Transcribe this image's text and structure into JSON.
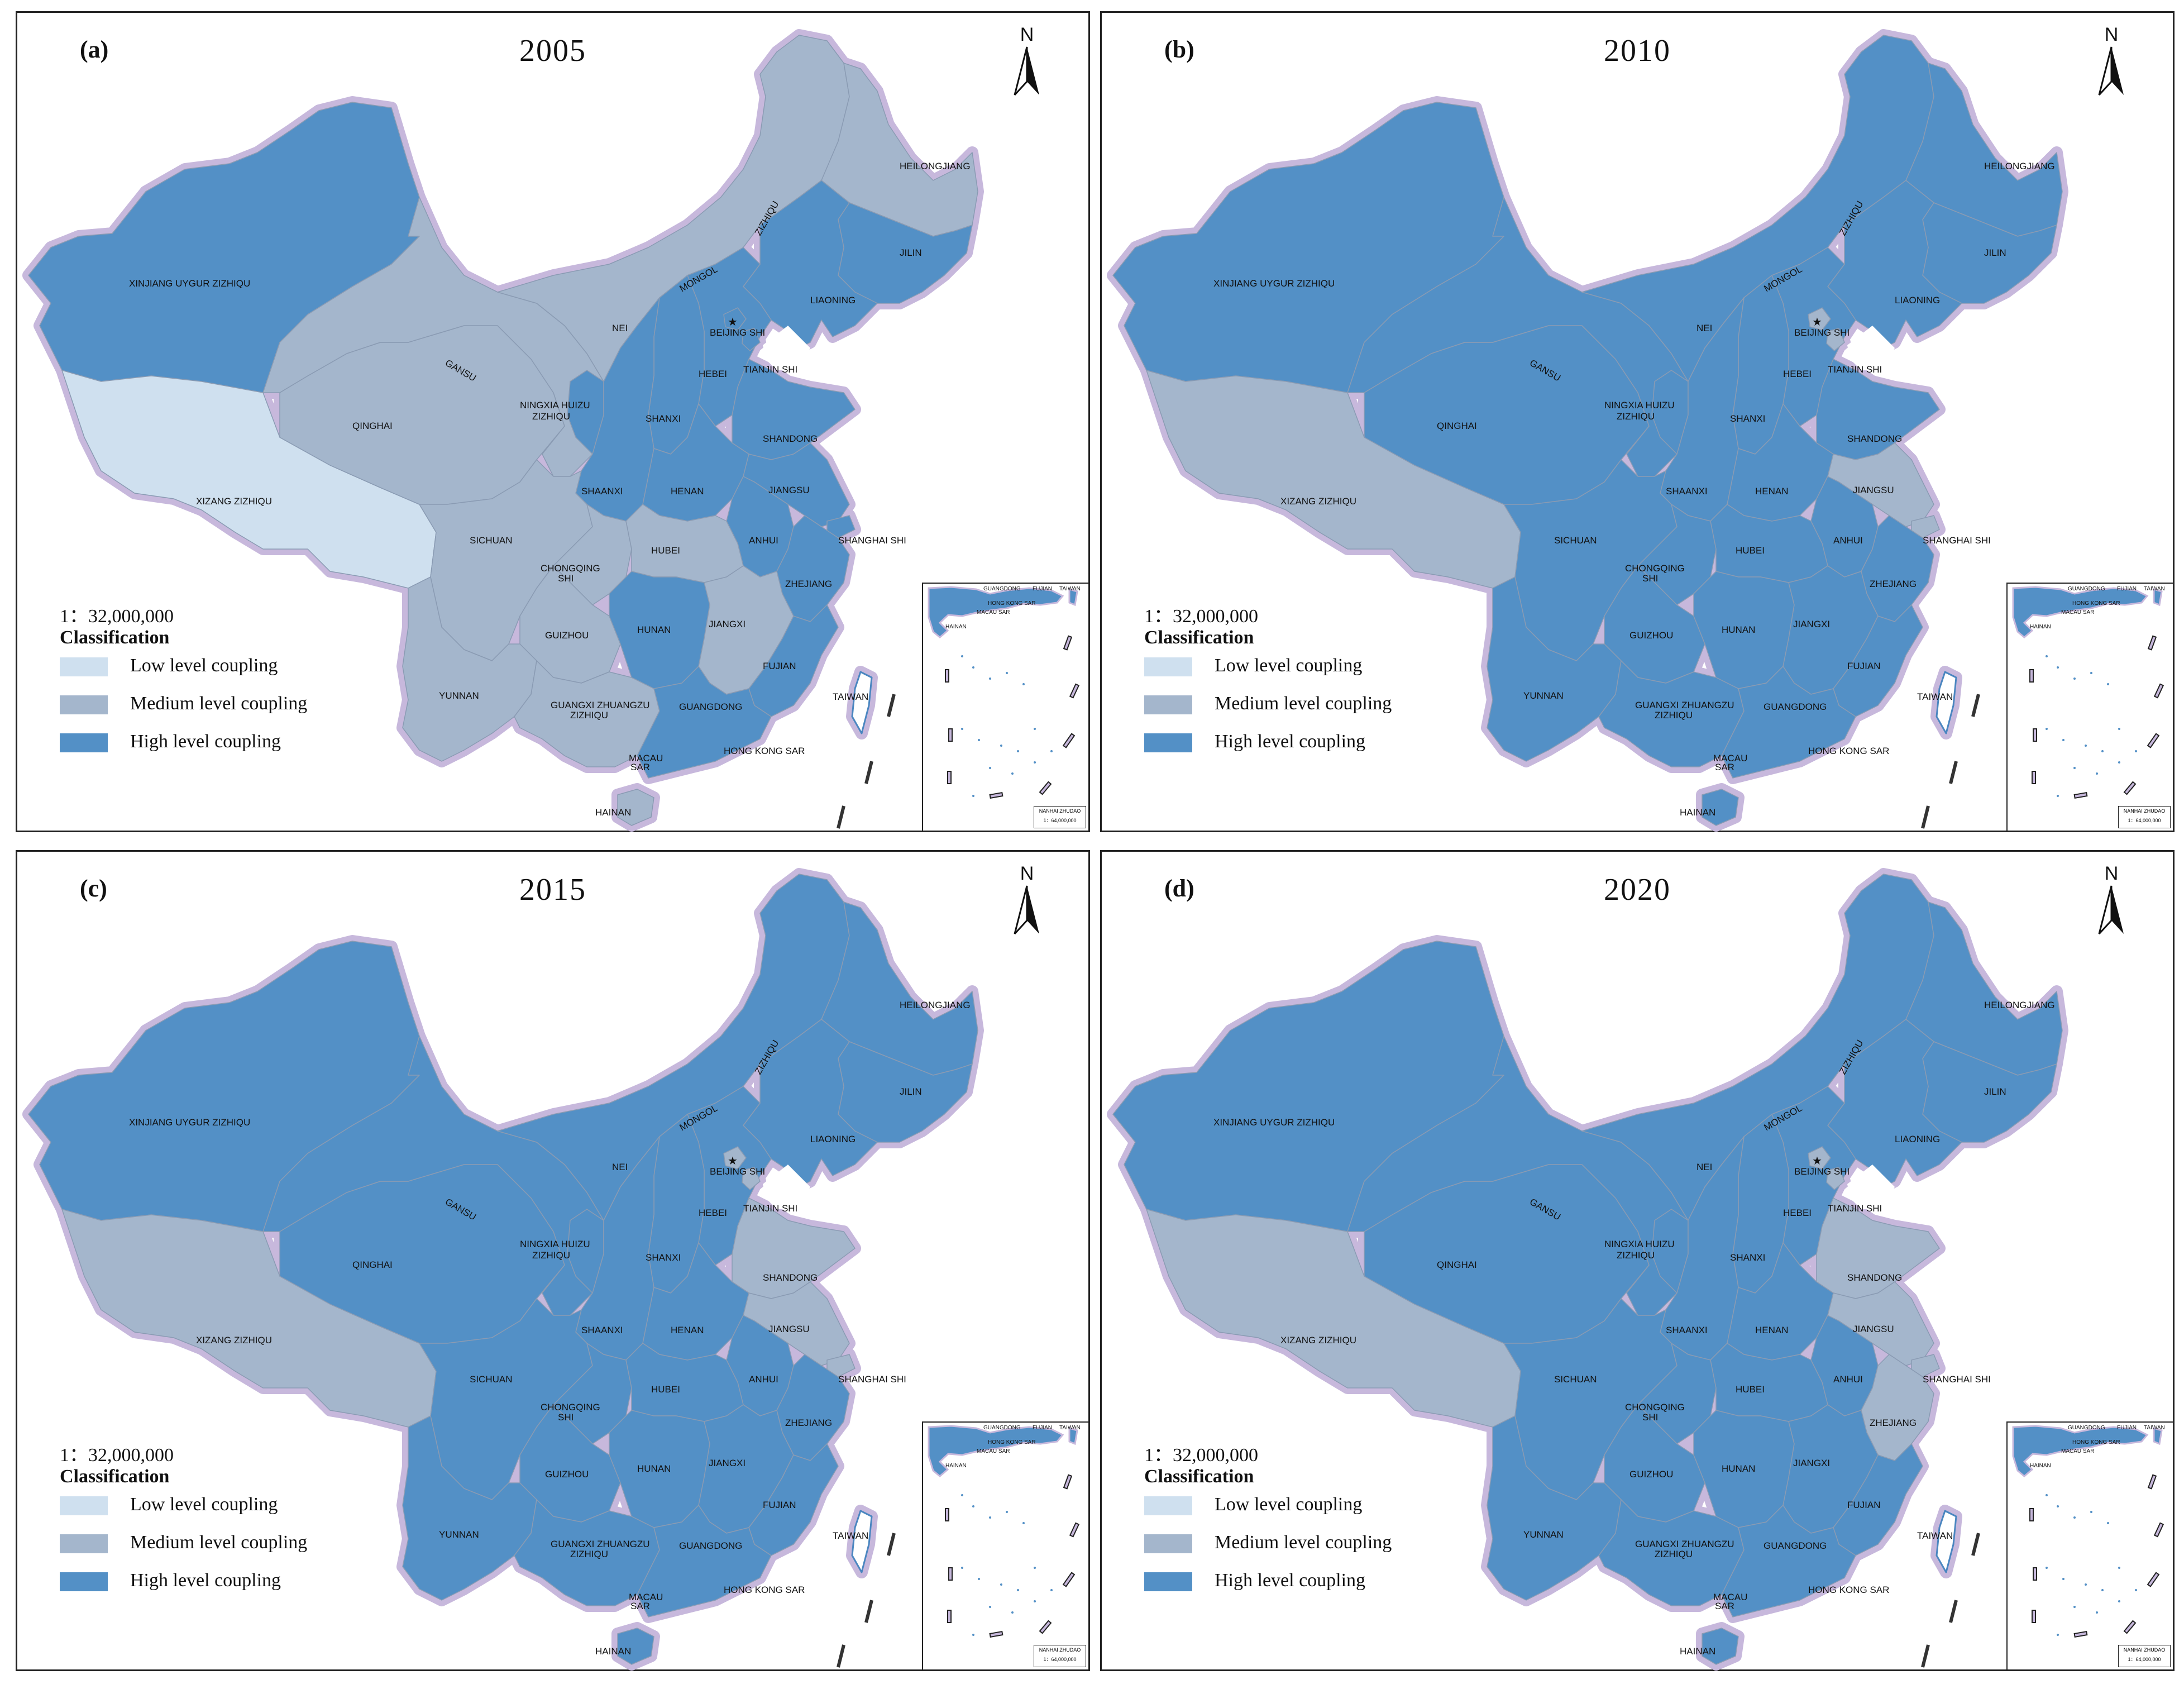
{
  "colors": {
    "low": "#cfe0ef",
    "medium": "#a4b6cc",
    "high": "#5390c6",
    "halo": "#c7b8dc",
    "sea": "#ffffff"
  },
  "legend": {
    "scale": "1：32,000,000",
    "title": "Classification",
    "items": [
      {
        "label": "Low level coupling",
        "level": "low"
      },
      {
        "label": "Medium level coupling",
        "level": "medium"
      },
      {
        "label": "High level coupling",
        "level": "high"
      }
    ]
  },
  "north_label": "N",
  "inset": {
    "caption_line1": "NANHAI ZHUDAO",
    "caption_line2": "1：64,000,000",
    "labels": [
      "GUANGDONG",
      "FUJIAN",
      "TAIWAN",
      "HONG KONG SAR",
      "MACAU SAR",
      "HAINAN"
    ]
  },
  "province_labels": {
    "xinjiang": "XINJIANG   UYGUR   ZIZHIQU",
    "xizang": "XIZANG    ZIZHIQU",
    "qinghai": "QINGHAI",
    "gansu": "GANSU",
    "nei": "NEI",
    "mongol": "MONGOL",
    "zizhiqu_nm": "ZIZHIQU",
    "heilongjiang": "HEILONGJIANG",
    "jilin": "JILIN",
    "liaoning": "LIAONING",
    "beijing": "BEIJING SHI",
    "tianjin": "TIANJIN SHI",
    "hebei": "HEBEI",
    "shanxi": "SHANXI",
    "shandong": "SHANDONG",
    "ningxia1": "NINGXIA HUIZU",
    "ningxia2": "ZIZHIQU",
    "shaanxi": "SHAANXI",
    "henan": "HENAN",
    "jiangsu": "JIANGSU",
    "anhui": "ANHUI",
    "shanghai": "SHANGHAI SHI",
    "sichuan": "SICHUAN",
    "chongqing1": "CHONGQING",
    "chongqing2": "SHI",
    "hubei": "HUBEI",
    "zhejiang": "ZHEJIANG",
    "guizhou": "GUIZHOU",
    "hunan": "HUNAN",
    "jiangxi": "JIANGXI",
    "fujian": "FUJIAN",
    "yunnan": "YUNNAN",
    "guangxi1": "GUANGXI ZHUANGZU",
    "guangxi2": "ZIZHIQU",
    "guangdong": "GUANGDONG",
    "hongkong": "HONG KONG SAR",
    "macau1": "MACAU",
    "macau2": "SAR",
    "taiwan": "TAIWAN",
    "hainan": "HAINAN"
  },
  "panels": [
    {
      "label": "(a)",
      "year": "2005",
      "levels": {
        "xinjiang": "high",
        "xizang": "low",
        "qinghai": "medium",
        "gansu": "medium",
        "neimongol": "medium",
        "heilongjiang": "medium",
        "jilin": "high",
        "liaoning": "high",
        "beijing": "high",
        "tianjin": "high",
        "hebei": "high",
        "shanxi": "high",
        "shandong": "high",
        "ningxia": "high",
        "shaanxi": "high",
        "henan": "high",
        "jiangsu": "high",
        "anhui": "high",
        "shanghai": "high",
        "sichuan": "medium",
        "chongqing": "medium",
        "hubei": "medium",
        "zhejiang": "high",
        "guizhou": "medium",
        "hunan": "high",
        "jiangxi": "medium",
        "fujian": "high",
        "yunnan": "medium",
        "guangxi": "medium",
        "guangdong": "high",
        "hainan": "medium",
        "taiwan": "none"
      }
    },
    {
      "label": "(b)",
      "year": "2010",
      "levels": {
        "xinjiang": "high",
        "xizang": "medium",
        "qinghai": "high",
        "gansu": "high",
        "neimongol": "high",
        "heilongjiang": "high",
        "jilin": "high",
        "liaoning": "high",
        "beijing": "medium",
        "tianjin": "medium",
        "hebei": "high",
        "shanxi": "high",
        "shandong": "high",
        "ningxia": "high",
        "shaanxi": "high",
        "henan": "high",
        "jiangsu": "medium",
        "anhui": "high",
        "shanghai": "medium",
        "sichuan": "high",
        "chongqing": "high",
        "hubei": "high",
        "zhejiang": "high",
        "guizhou": "high",
        "hunan": "high",
        "jiangxi": "high",
        "fujian": "high",
        "yunnan": "high",
        "guangxi": "high",
        "guangdong": "high",
        "hainan": "high",
        "taiwan": "none"
      }
    },
    {
      "label": "(c)",
      "year": "2015",
      "levels": {
        "xinjiang": "high",
        "xizang": "medium",
        "qinghai": "high",
        "gansu": "high",
        "neimongol": "high",
        "heilongjiang": "high",
        "jilin": "high",
        "liaoning": "high",
        "beijing": "medium",
        "tianjin": "medium",
        "hebei": "high",
        "shanxi": "high",
        "shandong": "medium",
        "ningxia": "high",
        "shaanxi": "high",
        "henan": "high",
        "jiangsu": "medium",
        "anhui": "high",
        "shanghai": "medium",
        "sichuan": "high",
        "chongqing": "high",
        "hubei": "high",
        "zhejiang": "high",
        "guizhou": "high",
        "hunan": "high",
        "jiangxi": "high",
        "fujian": "high",
        "yunnan": "high",
        "guangxi": "high",
        "guangdong": "high",
        "hainan": "high",
        "taiwan": "none"
      }
    },
    {
      "label": "(d)",
      "year": "2020",
      "levels": {
        "xinjiang": "high",
        "xizang": "medium",
        "qinghai": "high",
        "gansu": "high",
        "neimongol": "high",
        "heilongjiang": "high",
        "jilin": "high",
        "liaoning": "high",
        "beijing": "medium",
        "tianjin": "medium",
        "hebei": "high",
        "shanxi": "high",
        "shandong": "medium",
        "ningxia": "high",
        "shaanxi": "high",
        "henan": "high",
        "jiangsu": "medium",
        "anhui": "high",
        "shanghai": "medium",
        "sichuan": "high",
        "chongqing": "high",
        "hubei": "high",
        "zhejiang": "medium",
        "guizhou": "high",
        "hunan": "high",
        "jiangxi": "high",
        "fujian": "high",
        "yunnan": "high",
        "guangxi": "high",
        "guangdong": "high",
        "hainan": "high",
        "taiwan": "none"
      }
    }
  ]
}
